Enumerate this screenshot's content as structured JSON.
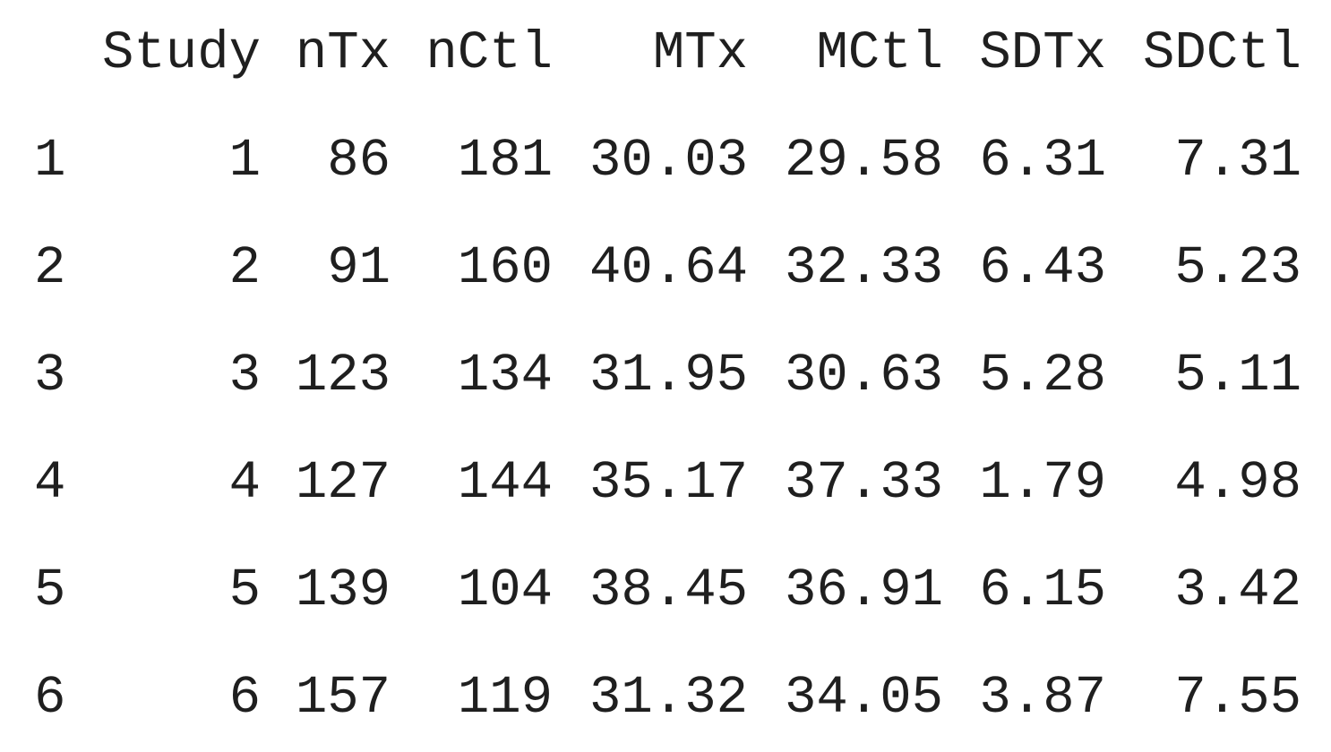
{
  "table": {
    "columns": [
      "Study",
      "nTx",
      "nCtl",
      "MTx",
      "MCtl",
      "SDTx",
      "SDCtl"
    ],
    "rows": [
      {
        "row_name": "1",
        "cells": [
          "1",
          "86",
          "181",
          "30.03",
          "29.58",
          "6.31",
          "7.31"
        ]
      },
      {
        "row_name": "2",
        "cells": [
          "2",
          "91",
          "160",
          "40.64",
          "32.33",
          "6.43",
          "5.23"
        ]
      },
      {
        "row_name": "3",
        "cells": [
          "3",
          "123",
          "134",
          "31.95",
          "30.63",
          "5.28",
          "5.11"
        ]
      },
      {
        "row_name": "4",
        "cells": [
          "4",
          "127",
          "144",
          "35.17",
          "37.33",
          "1.79",
          "4.98"
        ]
      },
      {
        "row_name": "5",
        "cells": [
          "5",
          "139",
          "104",
          "38.45",
          "36.91",
          "6.15",
          "3.42"
        ]
      },
      {
        "row_name": "6",
        "cells": [
          "6",
          "157",
          "119",
          "31.32",
          "34.05",
          "3.87",
          "7.55"
        ]
      }
    ]
  }
}
